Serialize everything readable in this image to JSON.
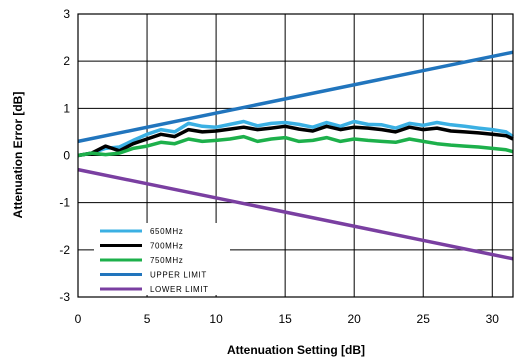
{
  "chart_data": {
    "type": "line",
    "title": "",
    "xlabel": "Attenuation Setting [dB]",
    "ylabel": "Attenuation Error [dB]",
    "xlim": [
      0,
      31.5
    ],
    "ylim": [
      -3,
      3
    ],
    "xticks": [
      "0",
      "5",
      "10",
      "15",
      "20",
      "25",
      "30"
    ],
    "yticks": [
      "3",
      "2",
      "1",
      "0",
      "-1",
      "-2",
      "-3"
    ],
    "grid": true,
    "legend_position": "bottom-left",
    "series": [
      {
        "name": "650MHz",
        "color": "#3BB0E3",
        "x": [
          0,
          1,
          2,
          3,
          4,
          5,
          6,
          7,
          8,
          9,
          10,
          11,
          12,
          13,
          14,
          15,
          16,
          17,
          18,
          19,
          20,
          21,
          22,
          23,
          24,
          25,
          26,
          27,
          28,
          29,
          30,
          31,
          31.5
        ],
        "y": [
          0.0,
          0.05,
          0.15,
          0.18,
          0.32,
          0.45,
          0.55,
          0.5,
          0.68,
          0.62,
          0.6,
          0.66,
          0.72,
          0.63,
          0.68,
          0.7,
          0.66,
          0.6,
          0.7,
          0.62,
          0.72,
          0.66,
          0.65,
          0.58,
          0.68,
          0.64,
          0.7,
          0.65,
          0.62,
          0.58,
          0.55,
          0.5,
          0.4
        ]
      },
      {
        "name": "700MHz",
        "color": "#000000",
        "x": [
          0,
          1,
          2,
          3,
          4,
          5,
          6,
          7,
          8,
          9,
          10,
          11,
          12,
          13,
          14,
          15,
          16,
          17,
          18,
          19,
          20,
          21,
          22,
          23,
          24,
          25,
          26,
          27,
          28,
          29,
          30,
          31,
          31.5
        ],
        "y": [
          0.0,
          0.05,
          0.2,
          0.1,
          0.25,
          0.35,
          0.45,
          0.4,
          0.55,
          0.5,
          0.52,
          0.56,
          0.6,
          0.55,
          0.58,
          0.62,
          0.56,
          0.52,
          0.62,
          0.55,
          0.6,
          0.58,
          0.55,
          0.5,
          0.6,
          0.55,
          0.58,
          0.52,
          0.5,
          0.48,
          0.45,
          0.42,
          0.35
        ]
      },
      {
        "name": "750MHz",
        "color": "#1DB04B",
        "x": [
          0,
          1,
          2,
          3,
          4,
          5,
          6,
          7,
          8,
          9,
          10,
          11,
          12,
          13,
          14,
          15,
          16,
          17,
          18,
          19,
          20,
          21,
          22,
          23,
          24,
          25,
          26,
          27,
          28,
          29,
          30,
          31,
          31.5
        ],
        "y": [
          0.0,
          0.05,
          0.02,
          0.05,
          0.15,
          0.2,
          0.28,
          0.25,
          0.35,
          0.3,
          0.32,
          0.35,
          0.4,
          0.3,
          0.35,
          0.38,
          0.3,
          0.32,
          0.38,
          0.3,
          0.35,
          0.32,
          0.3,
          0.28,
          0.35,
          0.3,
          0.25,
          0.22,
          0.2,
          0.18,
          0.15,
          0.12,
          0.08
        ]
      },
      {
        "name": "UPPER LIMIT",
        "color": "#2175BD",
        "x": [
          0,
          31.5
        ],
        "y": [
          0.3,
          2.19
        ]
      },
      {
        "name": "LOWER LIMIT",
        "color": "#7A3FA1",
        "x": [
          0,
          31.5
        ],
        "y": [
          -0.3,
          -2.19
        ]
      }
    ]
  }
}
